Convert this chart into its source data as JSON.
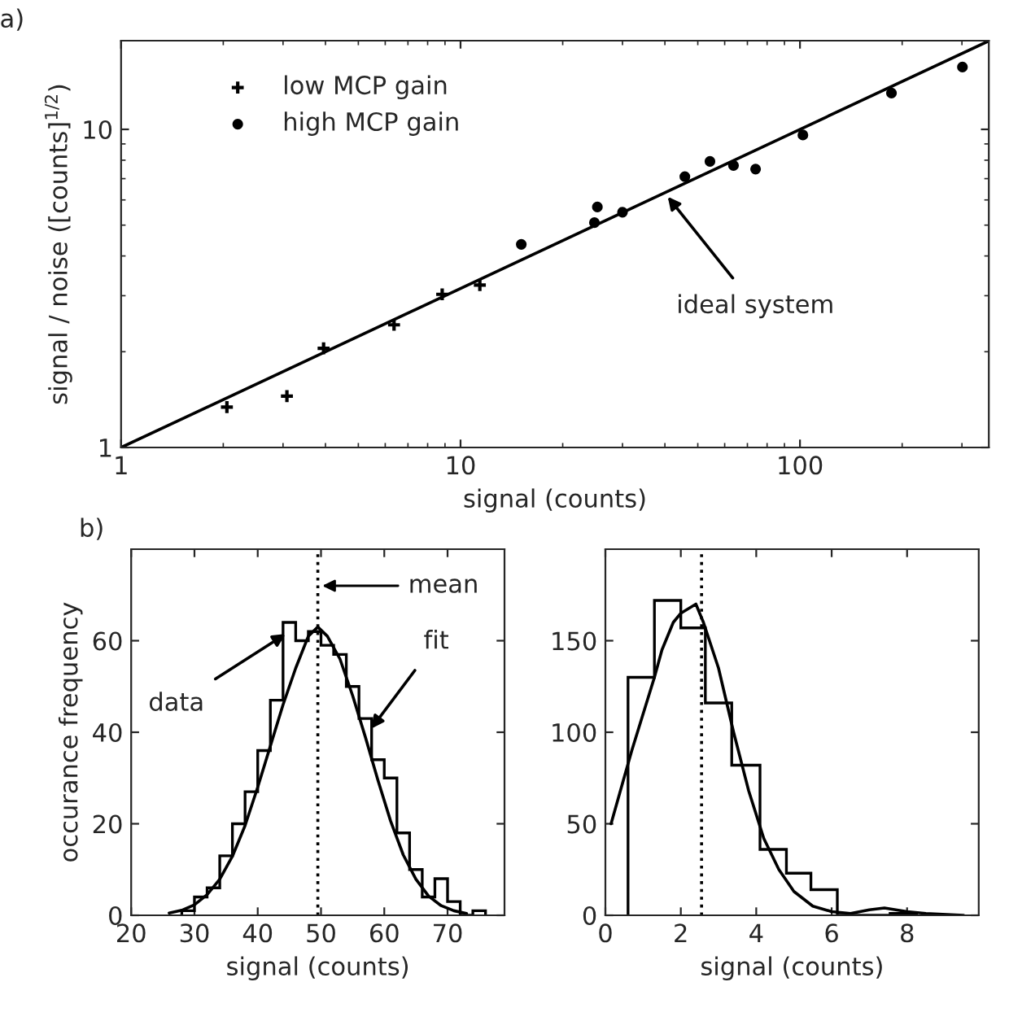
{
  "chart_data": [
    {
      "type": "scatter",
      "title": "a)",
      "xlabel": "signal (counts)",
      "ylabel": "signal / noise ([counts]$^{1/2}$)",
      "log": "xy",
      "xlim": [
        1,
        360
      ],
      "ylim": [
        1,
        19
      ],
      "xticks": [
        1,
        10,
        100
      ],
      "yticks": [
        1,
        10
      ],
      "legend": "top left",
      "annotations": [
        {
          "text": "ideal system",
          "x": 40,
          "y": 6.3
        }
      ],
      "series": [
        {
          "type": "scatter",
          "name": "low MCP gain",
          "marker": "cross",
          "color": "#000000",
          "x": [
            2.05,
            3.08,
            3.95,
            6.37,
            8.83,
            11.4
          ],
          "values": [
            1.34,
            1.45,
            2.05,
            2.43,
            3.03,
            3.24
          ]
        },
        {
          "type": "scatter",
          "name": "high MCP gain",
          "marker": "circle",
          "color": "#000000",
          "x": [
            15.1,
            24.8,
            25.3,
            30.0,
            45.8,
            54.3,
            63.7,
            74,
            102,
            186,
            301
          ],
          "values": [
            4.35,
            5.09,
            5.7,
            5.49,
            7.1,
            7.93,
            7.7,
            7.5,
            9.6,
            13.0,
            15.7
          ]
        },
        {
          "type": "line",
          "color": "#000000",
          "x": [
            1,
            360
          ],
          "values": [
            1,
            18.97
          ]
        }
      ]
    },
    {
      "type": "histogram",
      "title": "b)",
      "xlabel": "signal (counts)",
      "ylabel": "occurance frequency",
      "xlim": [
        20,
        79
      ],
      "ylim": [
        0,
        80
      ],
      "xticks": [
        20,
        30,
        40,
        50,
        60,
        70
      ],
      "yticks": [
        0,
        20,
        40,
        60
      ],
      "color": "#000000",
      "bins": [
        28,
        30,
        32,
        34,
        36,
        38,
        40,
        42,
        44,
        46,
        48,
        50,
        52,
        54,
        56,
        58,
        60,
        62,
        64,
        66,
        68,
        70,
        72,
        74,
        76
      ],
      "values": [
        1,
        4,
        6,
        13,
        20,
        27,
        36,
        47,
        64,
        60,
        62,
        59,
        57,
        50,
        43,
        34,
        30,
        18,
        10,
        4,
        8,
        3,
        0,
        1
      ],
      "ref_lines": [
        {
          "axis": "x",
          "value": 49.5,
          "label": "mean",
          "line_style": "dotted",
          "color": "#000000"
        }
      ],
      "annotations": [
        {
          "text": "data",
          "x": 45,
          "y": 62
        },
        {
          "text": "fit",
          "x": 57.5,
          "y": 40
        }
      ],
      "series": [
        {
          "type": "line",
          "color": "#000000",
          "x": [
            26,
            28,
            30,
            32,
            34,
            36,
            38,
            40,
            42,
            44,
            46,
            48,
            49.5,
            51,
            53,
            55,
            57,
            59,
            61,
            63,
            65,
            67,
            69,
            71,
            73
          ],
          "values": [
            0.5,
            1.1,
            2.3,
            4.5,
            7.9,
            12.9,
            19.6,
            28,
            37,
            46,
            54,
            61,
            63,
            61,
            56,
            48,
            39,
            29.5,
            20.6,
            13.2,
            7.9,
            4.2,
            2.1,
            1.0,
            0.4
          ]
        }
      ]
    },
    {
      "type": "histogram",
      "xlabel": "signal (counts)",
      "xlim": [
        0,
        9.9
      ],
      "ylim": [
        0,
        200
      ],
      "xticks": [
        0,
        2,
        4,
        6,
        8
      ],
      "yticks": [
        0,
        50,
        100,
        150
      ],
      "color": "#000000",
      "bins": [
        0.6,
        1.3,
        2.0,
        2.65,
        3.35,
        4.1,
        4.8,
        5.45,
        6.15,
        6.85,
        7.55,
        8.25
      ],
      "values": [
        130,
        172,
        157,
        116,
        82,
        36,
        23,
        14,
        0,
        0,
        1
      ],
      "ref_lines": [
        {
          "axis": "x",
          "value": 2.55,
          "line_style": "dotted",
          "color": "#000000"
        }
      ],
      "series": [
        {
          "type": "line",
          "color": "#000000",
          "x": [
            0.15,
            0.7,
            1.3,
            1.5,
            1.8,
            2.0,
            2.4,
            2.6,
            3.0,
            3.4,
            3.8,
            4.2,
            4.6,
            5.0,
            5.5,
            6.0,
            6.5,
            7.0,
            7.4,
            8.0,
            8.5,
            9.5
          ],
          "values": [
            50,
            90,
            130,
            145,
            160,
            165,
            170,
            160,
            135,
            100,
            68,
            42,
            25,
            13,
            5,
            2,
            1,
            3,
            4,
            2,
            1,
            0
          ]
        }
      ]
    }
  ]
}
